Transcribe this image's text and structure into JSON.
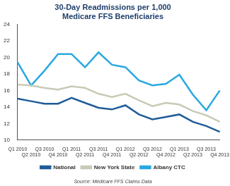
{
  "chart_data": {
    "type": "line",
    "title": [
      "30-Day Readmissions per 1,000",
      "Medicare FFS Beneficiaries"
    ],
    "annotation": "Source: Medicare FFS Claims Data",
    "categories": [
      "Q1 2010",
      "Q2 2010",
      "Q3 2010",
      "Q4 2010",
      "Q1 2011",
      "Q2 2011",
      "Q3 2011",
      "Q4 2011",
      "Q1 2012",
      "Q2 2012",
      "Q3 2012",
      "Q4 2012",
      "Q1 2013",
      "Q2 2013",
      "Q3 2013",
      "Q4 2013"
    ],
    "series": [
      {
        "name": "National",
        "color": "#1f5c99",
        "values": [
          15.0,
          14.7,
          14.4,
          14.4,
          15.1,
          14.5,
          13.9,
          13.7,
          14.2,
          13.1,
          12.5,
          12.8,
          13.1,
          12.2,
          11.7,
          11.0
        ]
      },
      {
        "name": "New York State",
        "color": "#c9c9b6",
        "values": [
          16.7,
          16.6,
          16.3,
          16.1,
          16.5,
          16.3,
          15.6,
          15.2,
          15.6,
          14.8,
          14.1,
          14.5,
          14.3,
          13.5,
          13.0,
          12.2
        ]
      },
      {
        "name": "Albany CTC",
        "color": "#29a8e0",
        "values": [
          19.4,
          16.6,
          18.4,
          20.4,
          20.4,
          18.8,
          20.6,
          19.1,
          18.8,
          17.2,
          16.6,
          16.8,
          17.9,
          15.5,
          13.6,
          16.0
        ]
      }
    ],
    "ylim": [
      10,
      24
    ],
    "yticks": [
      10,
      12,
      14,
      16,
      18,
      20,
      22,
      24
    ],
    "grid": false,
    "legend": "bottom"
  }
}
